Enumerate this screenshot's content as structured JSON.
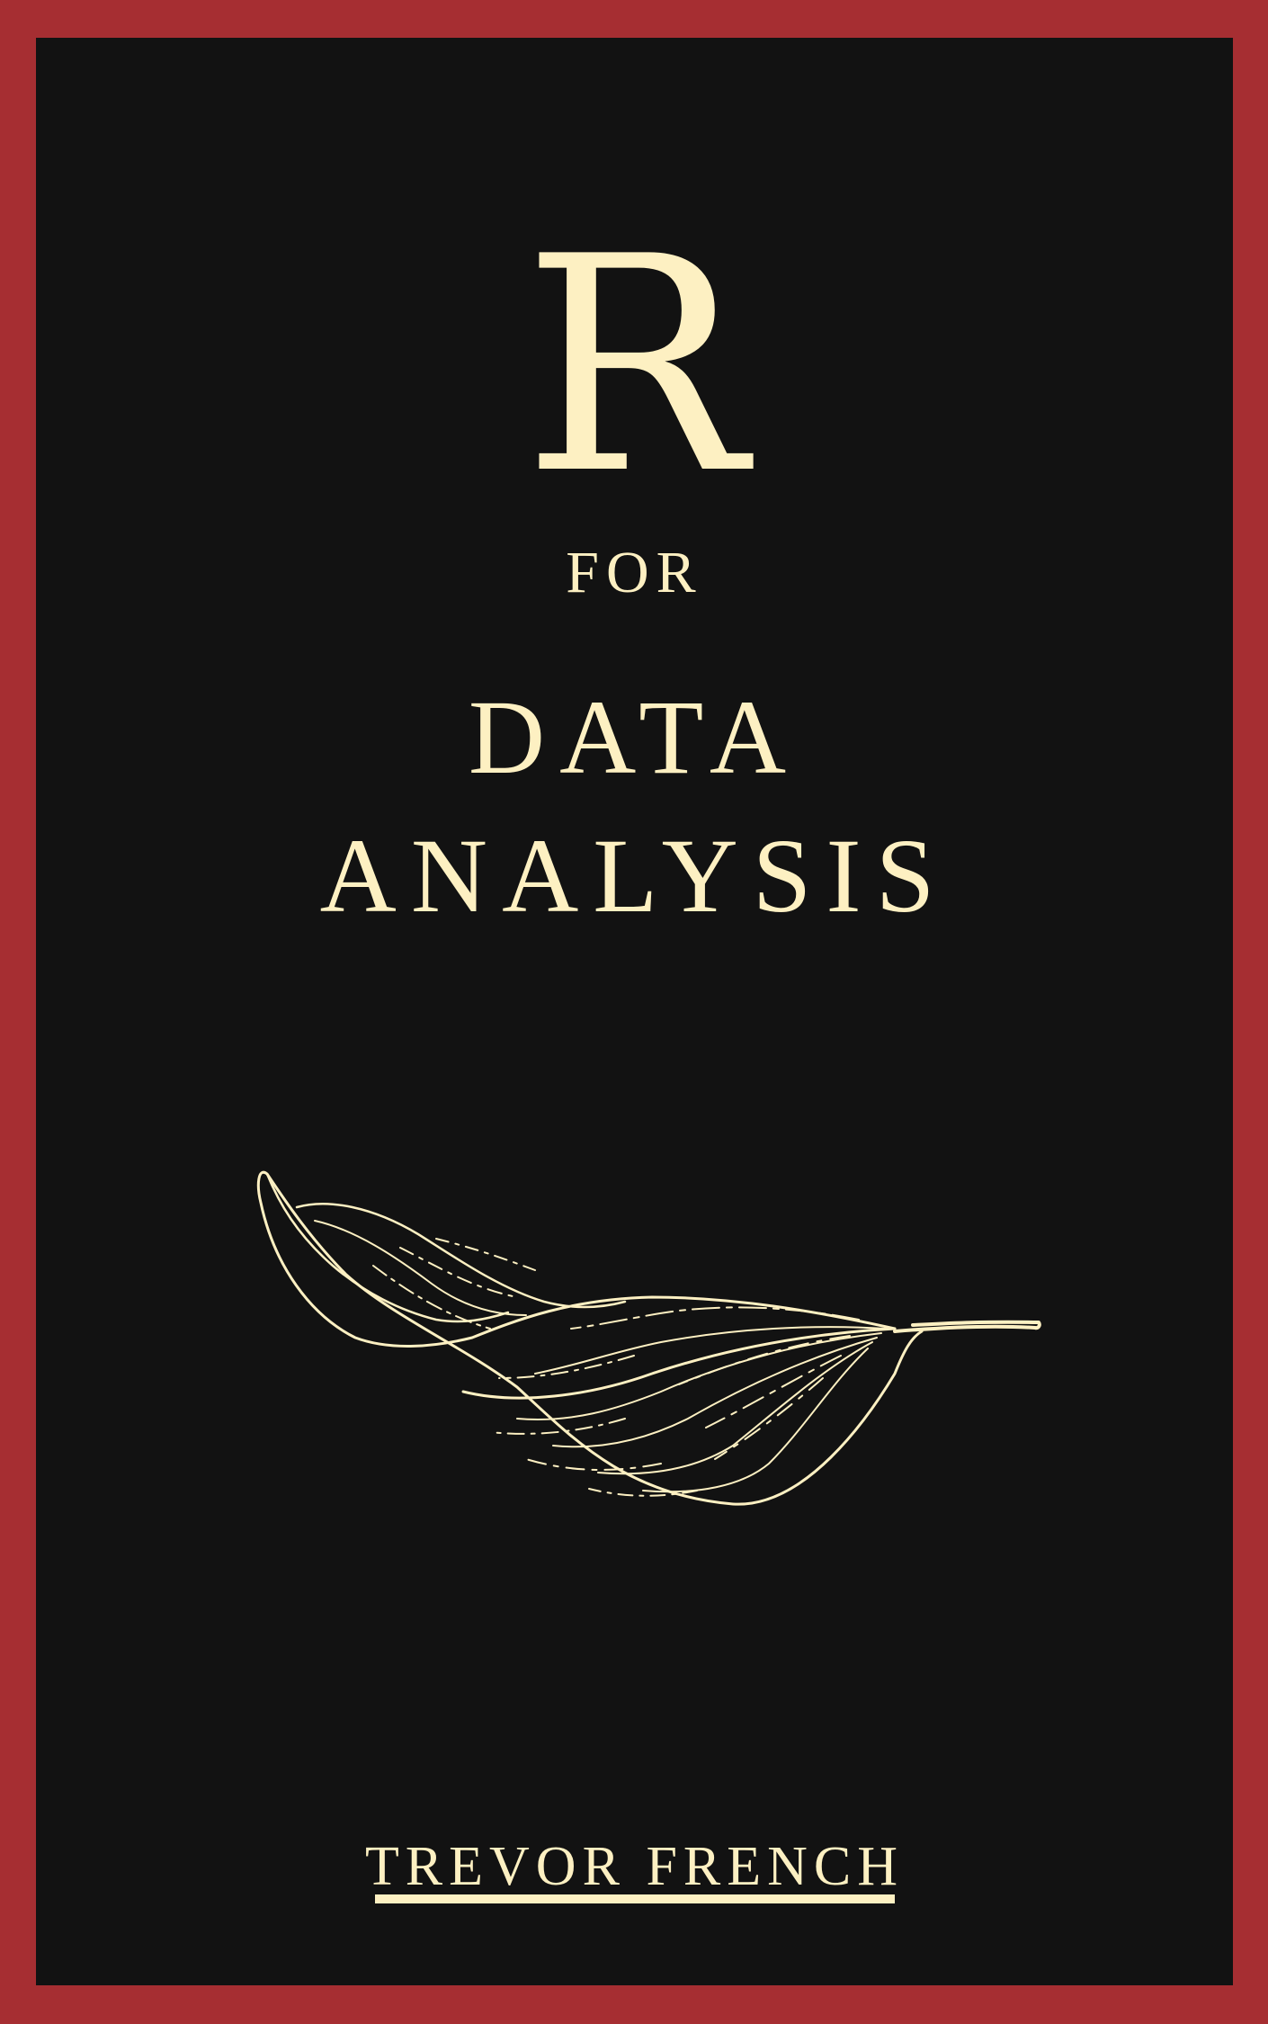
{
  "cover": {
    "title_letter": "R",
    "title_connector": "FOR",
    "title_line1": "DATA",
    "title_line2": "ANALYSIS",
    "author": "TREVOR FRENCH",
    "illustration": "leaf-illustration"
  },
  "colors": {
    "border": "#a62e32",
    "background": "#121212",
    "ink": "#fdf0c2"
  }
}
